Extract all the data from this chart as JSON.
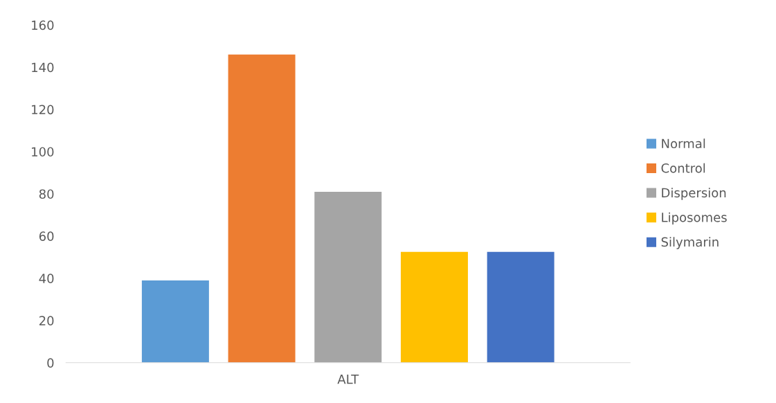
{
  "chart_data": {
    "type": "bar",
    "categories": [
      "ALT"
    ],
    "series": [
      {
        "name": "Normal",
        "color": "#5b9bd5",
        "values": [
          39
        ]
      },
      {
        "name": "Control",
        "color": "#ed7d31",
        "values": [
          146
        ]
      },
      {
        "name": "Dispersion",
        "color": "#a5a5a5",
        "values": [
          81
        ]
      },
      {
        "name": "Liposomes",
        "color": "#ffc000",
        "values": [
          52.5
        ]
      },
      {
        "name": "Silymarin",
        "color": "#4472c4",
        "values": [
          52.5
        ]
      }
    ],
    "ylim": [
      0,
      160
    ],
    "yticks": [
      0,
      20,
      40,
      60,
      80,
      100,
      120,
      140,
      160
    ],
    "grid": false,
    "legend": "right"
  }
}
